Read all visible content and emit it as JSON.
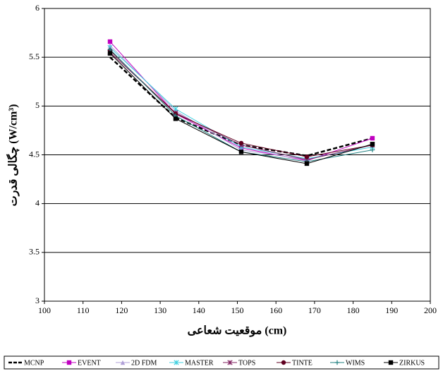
{
  "chart_data": {
    "type": "line",
    "xlabel": "موقعیت شعاعی (cm)",
    "ylabel": "چگالی قدرت (W/cm³)",
    "x": [
      117,
      134,
      151,
      168,
      185
    ],
    "xlim": [
      100,
      200
    ],
    "xticks": [
      100,
      110,
      120,
      130,
      140,
      150,
      160,
      170,
      180,
      190,
      200
    ],
    "ylim": [
      3,
      6
    ],
    "yticks": [
      3,
      3.5,
      4,
      4.5,
      5,
      5.5,
      6
    ],
    "grid": true,
    "legend": "bottom",
    "series": [
      {
        "name": "MCNP",
        "color": "#000000",
        "marker": "none",
        "dash": true,
        "values": [
          5.5,
          4.88,
          4.6,
          4.49,
          4.67
        ]
      },
      {
        "name": "EVENT",
        "color": "#c000c0",
        "marker": "square",
        "values": [
          5.66,
          4.92,
          4.57,
          4.44,
          4.67
        ]
      },
      {
        "name": "2D FDM",
        "color": "#b0a0d8",
        "marker": "triangle",
        "values": [
          5.62,
          4.95,
          4.55,
          4.45,
          4.6
        ]
      },
      {
        "name": "MASTER",
        "color": "#40d0e0",
        "marker": "star",
        "values": [
          5.6,
          4.97,
          4.58,
          4.46,
          4.58
        ]
      },
      {
        "name": "TOPS",
        "color": "#802060",
        "marker": "star",
        "values": [
          5.55,
          4.93,
          4.6,
          4.45,
          4.6
        ]
      },
      {
        "name": "TINTE",
        "color": "#600020",
        "marker": "circle",
        "values": [
          5.57,
          4.92,
          4.62,
          4.48,
          4.6
        ]
      },
      {
        "name": "WIMS",
        "color": "#208080",
        "marker": "plus",
        "values": [
          5.58,
          4.9,
          4.53,
          4.43,
          4.55
        ]
      },
      {
        "name": "ZIRKUS",
        "color": "#000000",
        "marker": "square",
        "values": [
          5.54,
          4.87,
          4.53,
          4.41,
          4.61
        ]
      }
    ]
  }
}
